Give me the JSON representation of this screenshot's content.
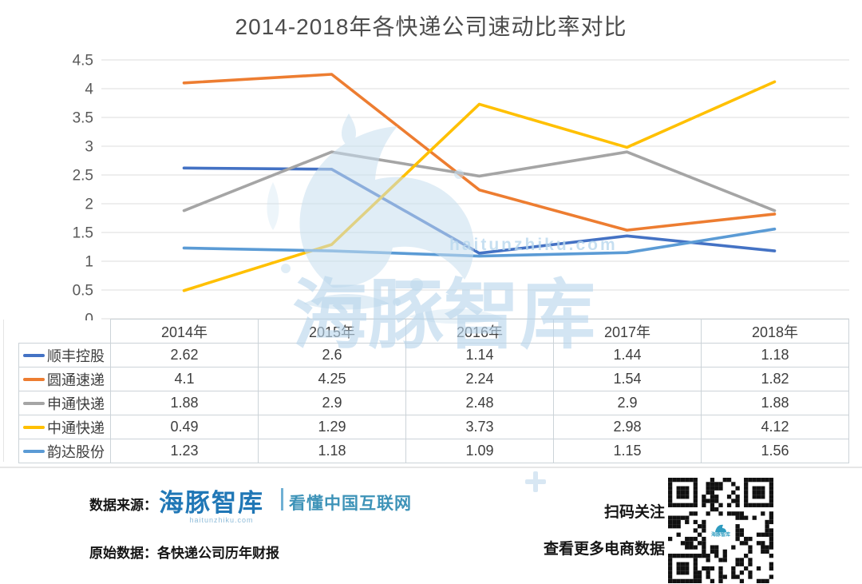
{
  "title": "2014-2018年各快递公司速动比率对比",
  "chart_data": {
    "type": "line",
    "title": "2014-2018年各快递公司速动比率对比",
    "categories": [
      "2014年",
      "2015年",
      "2016年",
      "2017年",
      "2018年"
    ],
    "series": [
      {
        "name": "顺丰控股",
        "color": "#4472C4",
        "values": [
          2.62,
          2.6,
          1.14,
          1.44,
          1.18
        ]
      },
      {
        "name": "圆通速递",
        "color": "#ED7D31",
        "values": [
          4.1,
          4.25,
          2.24,
          1.54,
          1.82
        ]
      },
      {
        "name": "申通快递",
        "color": "#A5A5A5",
        "values": [
          1.88,
          2.9,
          2.48,
          2.9,
          1.88
        ]
      },
      {
        "name": "中通快递",
        "color": "#FFC000",
        "values": [
          0.49,
          1.29,
          3.73,
          2.98,
          4.12
        ]
      },
      {
        "name": "韵达股份",
        "color": "#5B9BD5",
        "values": [
          1.23,
          1.18,
          1.09,
          1.15,
          1.56
        ]
      }
    ],
    "xlabel": "",
    "ylabel": "",
    "ylim": [
      0,
      4.5
    ],
    "ytick_step": 0.5,
    "yticks": [
      "0",
      "0.5",
      "1",
      "1.5",
      "2",
      "2.5",
      "3",
      "3.5",
      "4",
      "4.5"
    ],
    "grid": true,
    "legend_position": "table-left"
  },
  "watermark": {
    "brand": "海豚智库",
    "url": "haitunzhiku.com",
    "dolphin_icon": "dolphin-splash",
    "color": "#B9D6EC"
  },
  "footer": {
    "source_label": "数据来源：",
    "brand": "海豚智库",
    "brand_tagline": "看懂中国互联网",
    "brand_url": "haitunzhiku.com",
    "raw_label": "原始数据：",
    "raw_value": "各快递公司历年财报",
    "qr_caption_1": "扫码关注",
    "qr_caption_2": "查看更多电商数据",
    "qr_logo_text": "海豚智库",
    "brand_color": "#2077B6",
    "tagline_color": "#3E93B8"
  }
}
